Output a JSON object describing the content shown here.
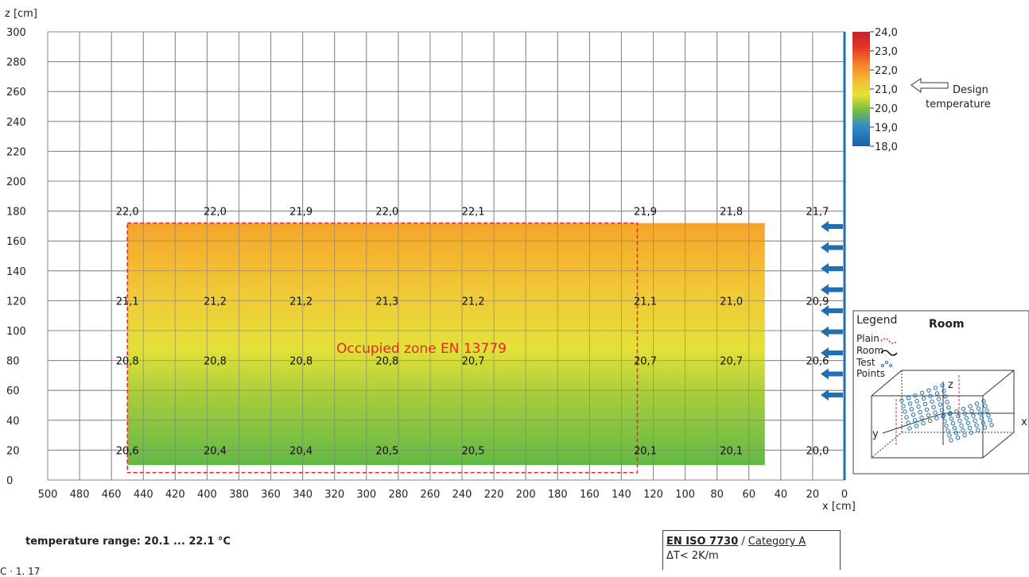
{
  "chart_data": {
    "type": "heatmap",
    "y_axis_label": "z [cm]",
    "x_axis_label": "x [cm]",
    "xlim": [
      500,
      0
    ],
    "ylim": [
      0,
      300
    ],
    "x_ticks": [
      "500",
      "480",
      "460",
      "440",
      "420",
      "400",
      "380",
      "360",
      "340",
      "320",
      "300",
      "280",
      "260",
      "240",
      "220",
      "200",
      "180",
      "160",
      "140",
      "120",
      "100",
      "80",
      "60",
      "40",
      "20",
      "0"
    ],
    "y_ticks": [
      "300",
      "280",
      "260",
      "240",
      "220",
      "200",
      "180",
      "160",
      "140",
      "120",
      "100",
      "80",
      "60",
      "40",
      "20",
      "0"
    ],
    "grid": true,
    "field_extent": {
      "x": [
        450,
        50
      ],
      "z": [
        10,
        172
      ]
    },
    "columns_x": [
      450,
      395,
      341,
      287,
      233,
      125,
      71,
      17
    ],
    "rows": [
      {
        "z": 180,
        "values": [
          "22,0",
          "22,0",
          "21,9",
          "22,0",
          "22,1",
          "21,9",
          "21,8",
          "21,7"
        ]
      },
      {
        "z": 120,
        "values": [
          "21,1",
          "21,2",
          "21,2",
          "21,3",
          "21,2",
          "21,1",
          "21,0",
          "20,9"
        ]
      },
      {
        "z": 80,
        "values": [
          "20,8",
          "20,8",
          "20,8",
          "20,8",
          "20,7",
          "20,7",
          "20,7",
          "20,6"
        ]
      },
      {
        "z": 20,
        "values": [
          "20,6",
          "20,4",
          "20,4",
          "20,5",
          "20,5",
          "20,1",
          "20,1",
          "20,0"
        ]
      }
    ],
    "occupied_zone": {
      "label": "Occupied zone EN 13779",
      "x": [
        450,
        130
      ],
      "z": [
        5,
        172
      ],
      "color": "#e8262d"
    },
    "colorbar": {
      "ticks": [
        "24,0",
        "23,0",
        "22,0",
        "21,0",
        "20,0",
        "19,0",
        "18,0"
      ],
      "design_marker_tick": "21,0",
      "design_label_line1": "Design",
      "design_label_line2": "temperature",
      "colors": [
        "#c0262d",
        "#e8342a",
        "#f58a2b",
        "#f2c534",
        "#e5e233",
        "#7bbf3f",
        "#2f8cc7",
        "#1f5fa8"
      ]
    },
    "wall_arrows": {
      "count": 9,
      "color": "#1f6fb2"
    },
    "legend": {
      "title": "Legend",
      "room_title": "Room",
      "items": [
        "Plain",
        "Room",
        "Test",
        "Points"
      ],
      "axis_labels": [
        "z",
        "x",
        "y"
      ]
    }
  },
  "footer": {
    "temperature_range": "temperature range: 20.1 ... 22.1 °C",
    "standard": "EN ISO 7730",
    "category": "Category A",
    "gradient": "ΔT< 2K/m",
    "cut_text": "C  ·  1.  17"
  }
}
